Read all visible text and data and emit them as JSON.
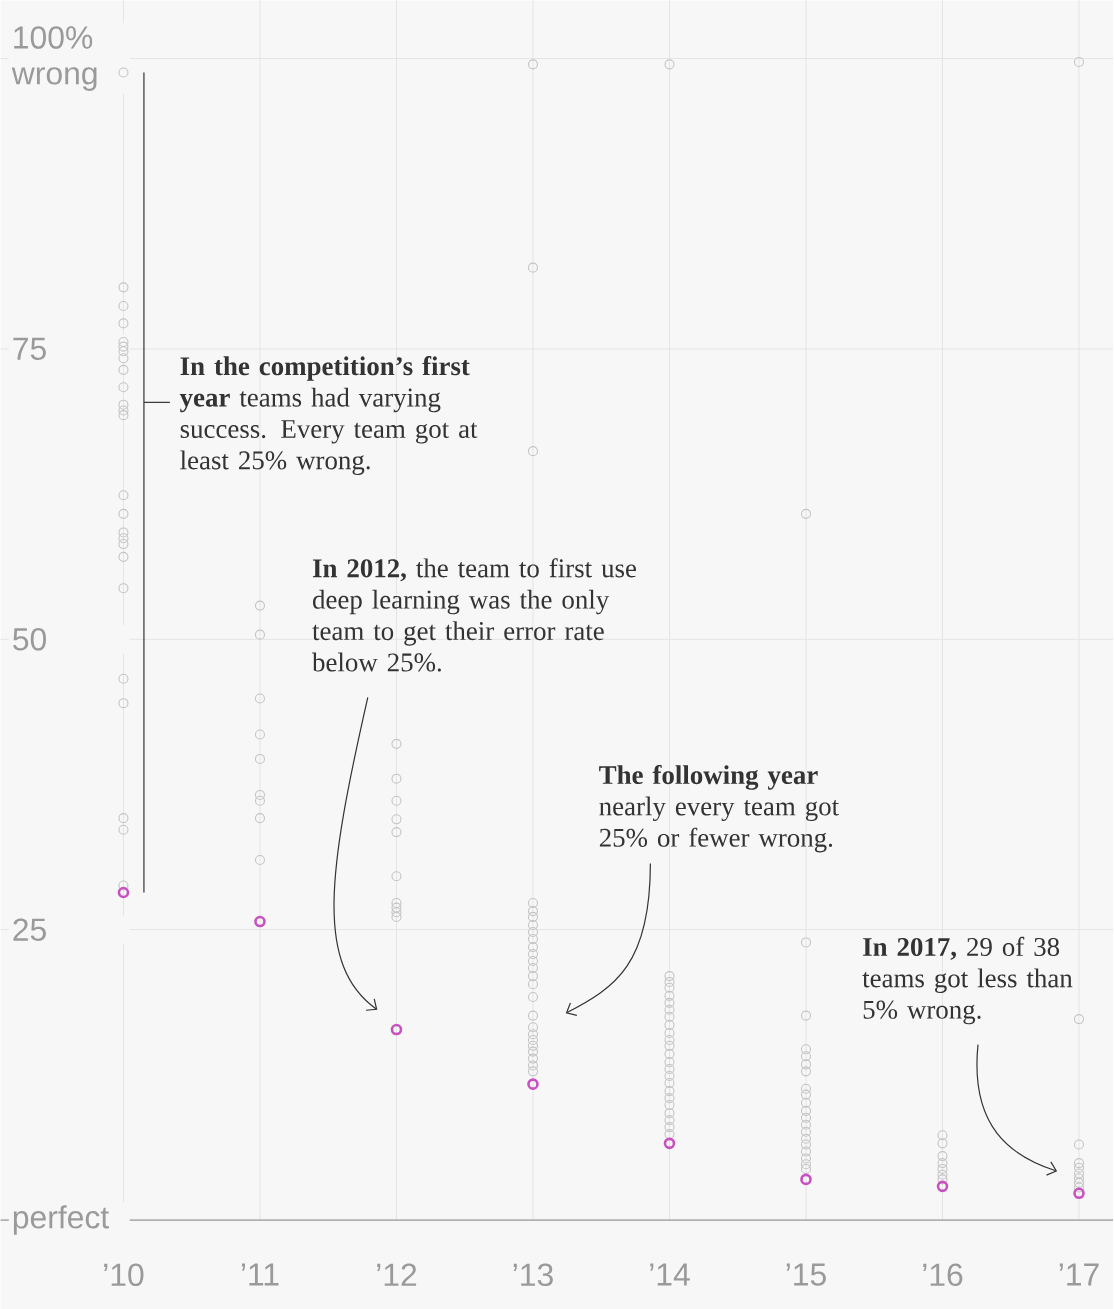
{
  "chart_data": {
    "type": "scatter",
    "xlim": [
      2009.1,
      2017.25
    ],
    "ylim": [
      0,
      105
    ],
    "xticks": [
      {
        "value": 2010,
        "label": "’10"
      },
      {
        "value": 2011,
        "label": "’11"
      },
      {
        "value": 2012,
        "label": "’12"
      },
      {
        "value": 2013,
        "label": "’13"
      },
      {
        "value": 2014,
        "label": "’14"
      },
      {
        "value": 2015,
        "label": "’15"
      },
      {
        "value": 2016,
        "label": "’16"
      },
      {
        "value": 2017,
        "label": "’17"
      }
    ],
    "yticks": [
      {
        "value": 0,
        "label": "perfect"
      },
      25,
      50,
      75,
      {
        "value": 100,
        "label": "100% wrong"
      }
    ],
    "grid": true,
    "marker": "circle",
    "series": [
      {
        "color": "#c4c4c4",
        "x": [
          2010,
          2010,
          2010,
          2010,
          2010,
          2010,
          2010,
          2010,
          2010,
          2010,
          2010,
          2010,
          2010,
          2010,
          2010,
          2010,
          2010,
          2010,
          2010,
          2010,
          2010,
          2010,
          2010,
          2010,
          2010,
          2011,
          2011,
          2011,
          2011,
          2011,
          2011,
          2011,
          2011,
          2011,
          2012,
          2012,
          2012,
          2012,
          2012,
          2012,
          2012,
          2012,
          2012,
          2012,
          2013,
          2013,
          2013,
          2013,
          2013,
          2013,
          2013,
          2013,
          2013,
          2013,
          2013,
          2013,
          2013,
          2013,
          2013,
          2013,
          2013,
          2013,
          2013,
          2013,
          2013,
          2013,
          2013,
          2013,
          2013,
          2014,
          2014,
          2014,
          2014,
          2014,
          2014,
          2014,
          2014,
          2014,
          2014,
          2014,
          2014,
          2014,
          2014,
          2014,
          2014,
          2014,
          2014,
          2014,
          2014,
          2014,
          2014,
          2014,
          2014,
          2015,
          2015,
          2015,
          2015,
          2015,
          2015,
          2015,
          2015,
          2015,
          2015,
          2015,
          2015,
          2015,
          2015,
          2015,
          2015,
          2015,
          2015,
          2015,
          2015,
          2016,
          2016,
          2016,
          2016,
          2016,
          2016,
          2016,
          2017,
          2017,
          2017,
          2017,
          2017,
          2017,
          2017,
          2017,
          2017
        ],
        "values": [
          98.8,
          80.3,
          78.7,
          77.2,
          75.6,
          75.2,
          74.8,
          74.2,
          73.2,
          71.7,
          70.2,
          69.7,
          69.3,
          62.4,
          60.8,
          59.2,
          58.7,
          58.2,
          57.1,
          54.4,
          46.6,
          44.5,
          34.6,
          33.6,
          28.8,
          52.9,
          50.4,
          44.9,
          41.8,
          39.7,
          36.6,
          36.1,
          34.6,
          31.0,
          41.0,
          38.0,
          36.1,
          34.5,
          33.4,
          29.6,
          27.3,
          26.9,
          26.5,
          26.1,
          99.5,
          82.0,
          66.2,
          27.3,
          26.6,
          26.1,
          25.4,
          24.8,
          24.2,
          23.5,
          22.9,
          22.3,
          21.7,
          21.0,
          20.3,
          19.2,
          17.6,
          16.6,
          16.0,
          15.5,
          15.0,
          14.5,
          13.9,
          13.3,
          12.8,
          99.5,
          21.0,
          20.5,
          20.0,
          19.3,
          18.7,
          18.1,
          17.5,
          16.8,
          16.1,
          15.5,
          15.0,
          14.3,
          13.6,
          13.0,
          12.4,
          11.8,
          11.1,
          10.5,
          9.9,
          9.2,
          8.6,
          8.0,
          7.4,
          60.8,
          23.9,
          17.6,
          14.7,
          14.1,
          13.4,
          12.8,
          11.3,
          10.8,
          10.1,
          9.4,
          8.8,
          8.2,
          7.6,
          7.0,
          6.5,
          5.9,
          5.3,
          4.8,
          4.4,
          7.3,
          6.6,
          5.5,
          4.9,
          4.4,
          3.9,
          3.5,
          99.7,
          17.3,
          6.5,
          4.9,
          4.5,
          4.0,
          3.6,
          3.2,
          2.8
        ]
      },
      {
        "color": "#c850c0",
        "x": [
          2010,
          2011,
          2012,
          2013,
          2014,
          2015,
          2016,
          2017
        ],
        "values": [
          28.2,
          25.7,
          16.4,
          11.7,
          6.6,
          3.5,
          2.9,
          2.3
        ]
      },
      {
        "type": "line",
        "marker": "none",
        "color": "#333333",
        "x": [
          2010.15,
          2010.15
        ],
        "values": [
          98.8,
          28.2
        ]
      }
    ],
    "annotations": [
      "**In the competition’s first year** teams had varying success. Every team got at least 25% wrong.",
      "**In 2012,** the team to first use deep learning was the only team to get their error rate below 25%.",
      "**The following year** nearly every team got 25% or fewer wrong.",
      "**In 2017,** 29 of 38 teams got less than 5% wrong."
    ]
  }
}
